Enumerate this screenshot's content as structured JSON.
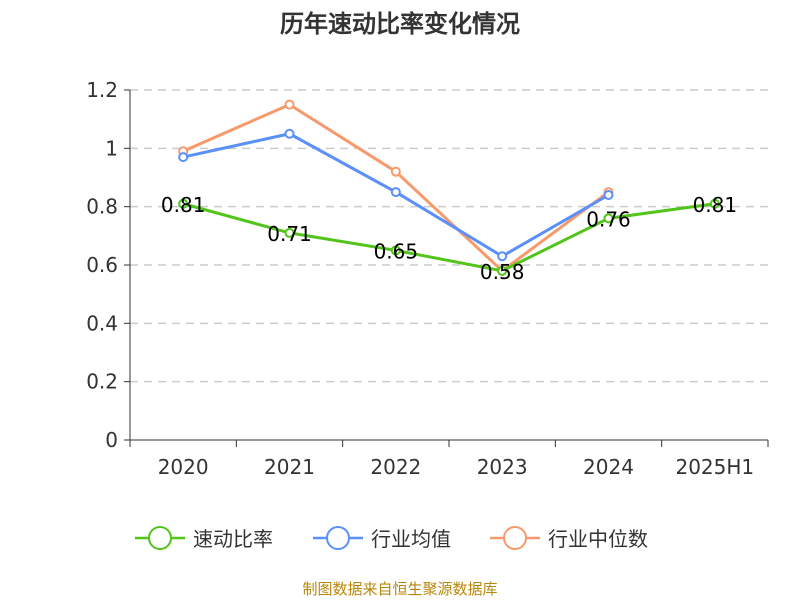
{
  "chart_data": {
    "type": "line",
    "title": "历年速动比率变化情况",
    "categories": [
      "2020",
      "2021",
      "2022",
      "2023",
      "2024",
      "2025H1"
    ],
    "ylim": [
      0,
      1.2
    ],
    "yticks": [
      "0",
      "0.2",
      "0.4",
      "0.6",
      "0.8",
      "1",
      "1.2"
    ],
    "grid": true,
    "legend_position": "bottom",
    "series": [
      {
        "name": "速动比率",
        "color": "#52c41a",
        "values": [
          0.81,
          0.71,
          0.65,
          0.58,
          0.76,
          0.81
        ],
        "labels": [
          "0.81",
          "0.71",
          "0.65",
          "0.58",
          "0.76",
          "0.81"
        ]
      },
      {
        "name": "行业均值",
        "color": "#5b8ff9",
        "values": [
          0.97,
          1.05,
          0.85,
          0.63,
          0.84,
          null
        ]
      },
      {
        "name": "行业中位数",
        "color": "#f79a6b",
        "values": [
          0.99,
          1.15,
          0.92,
          0.58,
          0.85,
          null
        ]
      }
    ],
    "source": "制图数据来自恒生聚源数据库"
  }
}
